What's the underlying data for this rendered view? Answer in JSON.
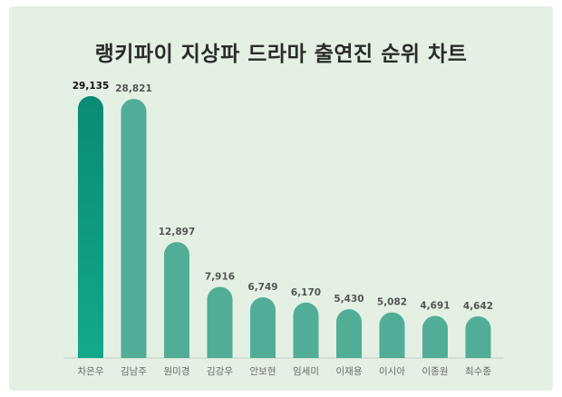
{
  "chart_data": {
    "type": "bar",
    "title": "랭키파이 지상파 드라마 출연진 순위 차트",
    "categories": [
      "차은우",
      "김남주",
      "원미경",
      "김강우",
      "안보현",
      "임세미",
      "이재용",
      "이시아",
      "이종원",
      "최수종"
    ],
    "values": [
      29135,
      28821,
      12897,
      7916,
      6749,
      6170,
      5430,
      5082,
      4691,
      4642
    ],
    "value_labels": [
      "29,135",
      "28,821",
      "12,897",
      "7,916",
      "6,749",
      "6,170",
      "5,430",
      "5,082",
      "4,691",
      "4,642"
    ],
    "xlabel": "",
    "ylabel": "",
    "ylim": [
      0,
      29135
    ],
    "grid": false,
    "legend": "none",
    "colors": {
      "background": "#e3f0e3",
      "bar": "#52ad96",
      "bar_top_start": "#0a8a76",
      "bar_top_end": "#12a98a",
      "baseline": "#c4cec4"
    }
  }
}
